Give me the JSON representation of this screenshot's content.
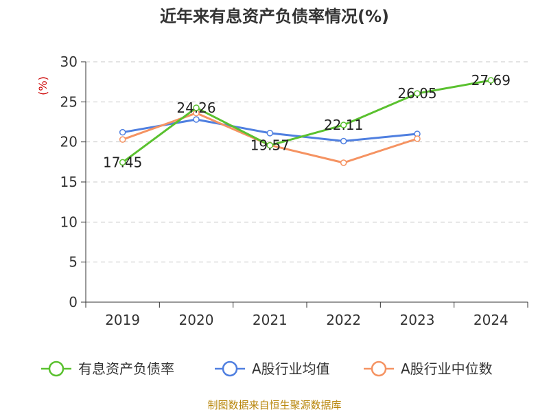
{
  "chart_data": {
    "type": "line",
    "title": "近年来有息资产负债率情况(%)",
    "ylabel": "(%)",
    "categories": [
      "2019",
      "2020",
      "2021",
      "2022",
      "2023",
      "2024"
    ],
    "yticks": [
      "0",
      "5",
      "10",
      "15",
      "20",
      "25",
      "30"
    ],
    "ylim": [
      0,
      30
    ],
    "grid": true,
    "legend_position": "bottom",
    "series": [
      {
        "name": "有息资产负债率",
        "color": "#5ac12f",
        "values": [
          17.45,
          24.26,
          19.57,
          22.11,
          26.05,
          27.69
        ],
        "labels": [
          "17.45",
          "24.26",
          "19.57",
          "22.11",
          "26.05",
          "27.69"
        ]
      },
      {
        "name": "A股行业均值",
        "color": "#4f7fe0",
        "values": [
          21.2,
          22.8,
          21.1,
          20.1,
          21.0,
          null
        ]
      },
      {
        "name": "A股行业中位数",
        "color": "#f59362",
        "values": [
          20.3,
          23.6,
          19.6,
          17.4,
          20.4,
          null
        ]
      }
    ]
  },
  "source": "制图数据来自恒生聚源数据库"
}
